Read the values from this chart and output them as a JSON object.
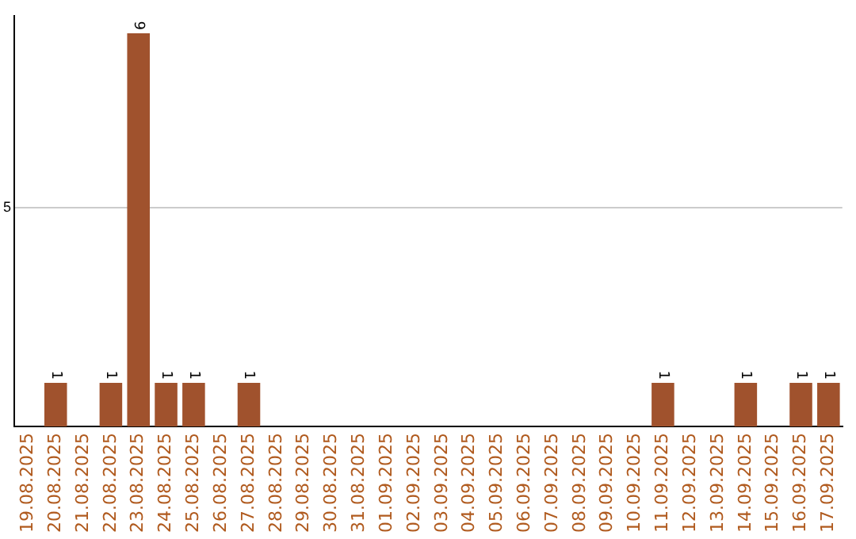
{
  "chart_data": {
    "type": "bar",
    "categories": [
      "19.08.2025",
      "20.08.2025",
      "21.08.2025",
      "22.08.2025",
      "23.08.2025",
      "24.08.2025",
      "25.08.2025",
      "26.08.2025",
      "27.08.2025",
      "28.08.2025",
      "29.08.2025",
      "30.08.2025",
      "31.08.2025",
      "01.09.2025",
      "02.09.2025",
      "03.09.2025",
      "04.09.2025",
      "05.09.2025",
      "06.09.2025",
      "07.09.2025",
      "08.09.2025",
      "09.09.2025",
      "10.09.2025",
      "11.09.2025",
      "12.09.2025",
      "13.09.2025",
      "14.09.2025",
      "15.09.2025",
      "16.09.2025",
      "17.09.2025"
    ],
    "values": [
      0,
      1,
      0,
      1,
      9,
      1,
      1,
      0,
      1,
      0,
      0,
      0,
      0,
      0,
      0,
      0,
      0,
      0,
      0,
      0,
      0,
      0,
      0,
      1,
      0,
      0,
      1,
      0,
      1,
      1
    ],
    "value_labels": [
      null,
      "1",
      null,
      "1",
      "9",
      "1",
      "1",
      null,
      "1",
      null,
      null,
      null,
      null,
      null,
      null,
      null,
      null,
      null,
      null,
      null,
      null,
      null,
      null,
      "1",
      null,
      null,
      "1",
      null,
      "1",
      "1"
    ],
    "color": "#a0522d",
    "ylim": [
      0,
      9.4
    ],
    "yticks": [
      5
    ],
    "grid": "y",
    "legend": false
  }
}
